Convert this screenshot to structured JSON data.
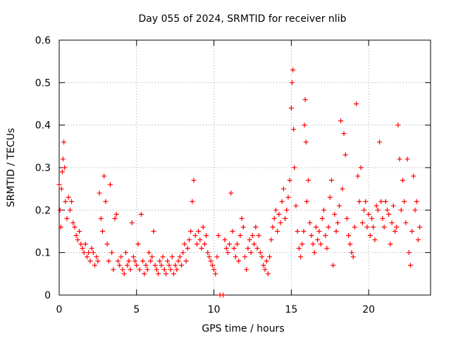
{
  "chart_data": {
    "type": "scatter",
    "title": "Day 055 of 2024, SRMTID for receiver nlib",
    "xlabel": "GPS time / hours",
    "ylabel": "SRMTID / TECUs",
    "xlim": [
      0,
      24
    ],
    "ylim": [
      0,
      0.6
    ],
    "xticks": [
      0,
      5,
      10,
      15,
      20
    ],
    "yticks": [
      0,
      0.1,
      0.2,
      0.3,
      0.4,
      0.5,
      0.6
    ],
    "xtick_labels": [
      "0",
      "5",
      "10",
      "15",
      "20"
    ],
    "ytick_labels": [
      "0",
      "0.1",
      "0.2",
      "0.3",
      "0.4",
      "0.5",
      "0.6"
    ],
    "grid": true,
    "marker": "plus",
    "series": [
      {
        "name": "SRMTID",
        "color": "#ff0000",
        "points": [
          [
            0.0,
            0.26
          ],
          [
            0.05,
            0.2
          ],
          [
            0.1,
            0.16
          ],
          [
            0.15,
            0.25
          ],
          [
            0.2,
            0.29
          ],
          [
            0.25,
            0.32
          ],
          [
            0.3,
            0.36
          ],
          [
            0.35,
            0.3
          ],
          [
            0.4,
            0.22
          ],
          [
            0.5,
            0.18
          ],
          [
            0.6,
            0.23
          ],
          [
            0.7,
            0.2
          ],
          [
            0.8,
            0.22
          ],
          [
            0.9,
            0.17
          ],
          [
            1.0,
            0.16
          ],
          [
            1.1,
            0.14
          ],
          [
            1.2,
            0.13
          ],
          [
            1.3,
            0.15
          ],
          [
            1.4,
            0.12
          ],
          [
            1.5,
            0.11
          ],
          [
            1.6,
            0.1
          ],
          [
            1.7,
            0.12
          ],
          [
            1.8,
            0.09
          ],
          [
            1.9,
            0.1
          ],
          [
            2.0,
            0.08
          ],
          [
            2.1,
            0.11
          ],
          [
            2.2,
            0.1
          ],
          [
            2.3,
            0.07
          ],
          [
            2.4,
            0.09
          ],
          [
            2.5,
            0.08
          ],
          [
            2.6,
            0.24
          ],
          [
            2.7,
            0.18
          ],
          [
            2.8,
            0.15
          ],
          [
            2.9,
            0.28
          ],
          [
            3.0,
            0.22
          ],
          [
            3.1,
            0.12
          ],
          [
            3.2,
            0.08
          ],
          [
            3.3,
            0.26
          ],
          [
            3.4,
            0.1
          ],
          [
            3.5,
            0.06
          ],
          [
            3.6,
            0.18
          ],
          [
            3.7,
            0.19
          ],
          [
            3.8,
            0.08
          ],
          [
            3.9,
            0.07
          ],
          [
            4.0,
            0.09
          ],
          [
            4.1,
            0.06
          ],
          [
            4.2,
            0.05
          ],
          [
            4.3,
            0.1
          ],
          [
            4.4,
            0.07
          ],
          [
            4.5,
            0.08
          ],
          [
            4.6,
            0.06
          ],
          [
            4.7,
            0.17
          ],
          [
            4.8,
            0.09
          ],
          [
            4.9,
            0.08
          ],
          [
            5.0,
            0.07
          ],
          [
            5.1,
            0.12
          ],
          [
            5.2,
            0.06
          ],
          [
            5.3,
            0.19
          ],
          [
            5.4,
            0.08
          ],
          [
            5.5,
            0.05
          ],
          [
            5.6,
            0.07
          ],
          [
            5.7,
            0.06
          ],
          [
            5.8,
            0.1
          ],
          [
            5.9,
            0.08
          ],
          [
            6.0,
            0.09
          ],
          [
            6.1,
            0.15
          ],
          [
            6.2,
            0.07
          ],
          [
            6.3,
            0.06
          ],
          [
            6.4,
            0.05
          ],
          [
            6.5,
            0.08
          ],
          [
            6.6,
            0.07
          ],
          [
            6.7,
            0.09
          ],
          [
            6.8,
            0.06
          ],
          [
            6.9,
            0.05
          ],
          [
            7.0,
            0.08
          ],
          [
            7.1,
            0.07
          ],
          [
            7.2,
            0.06
          ],
          [
            7.3,
            0.09
          ],
          [
            7.4,
            0.05
          ],
          [
            7.5,
            0.07
          ],
          [
            7.6,
            0.06
          ],
          [
            7.7,
            0.08
          ],
          [
            7.8,
            0.09
          ],
          [
            7.9,
            0.07
          ],
          [
            8.0,
            0.1
          ],
          [
            8.1,
            0.12
          ],
          [
            8.2,
            0.08
          ],
          [
            8.3,
            0.11
          ],
          [
            8.4,
            0.13
          ],
          [
            8.5,
            0.15
          ],
          [
            8.6,
            0.22
          ],
          [
            8.7,
            0.27
          ],
          [
            8.8,
            0.14
          ],
          [
            8.9,
            0.12
          ],
          [
            9.0,
            0.15
          ],
          [
            9.1,
            0.13
          ],
          [
            9.2,
            0.11
          ],
          [
            9.3,
            0.16
          ],
          [
            9.4,
            0.12
          ],
          [
            9.5,
            0.14
          ],
          [
            9.6,
            0.1
          ],
          [
            9.7,
            0.09
          ],
          [
            9.8,
            0.08
          ],
          [
            9.9,
            0.07
          ],
          [
            10.0,
            0.06
          ],
          [
            10.1,
            0.05
          ],
          [
            10.2,
            0.09
          ],
          [
            10.3,
            0.14
          ],
          [
            10.4,
            0.0
          ],
          [
            10.6,
            0.0
          ],
          [
            10.7,
            0.13
          ],
          [
            10.8,
            0.11
          ],
          [
            10.9,
            0.1
          ],
          [
            11.0,
            0.12
          ],
          [
            11.1,
            0.24
          ],
          [
            11.2,
            0.15
          ],
          [
            11.3,
            0.11
          ],
          [
            11.4,
            0.09
          ],
          [
            11.5,
            0.12
          ],
          [
            11.6,
            0.08
          ],
          [
            11.7,
            0.14
          ],
          [
            11.8,
            0.18
          ],
          [
            11.9,
            0.16
          ],
          [
            12.0,
            0.09
          ],
          [
            12.1,
            0.06
          ],
          [
            12.2,
            0.11
          ],
          [
            12.3,
            0.13
          ],
          [
            12.4,
            0.1
          ],
          [
            12.5,
            0.14
          ],
          [
            12.6,
            0.12
          ],
          [
            12.7,
            0.16
          ],
          [
            12.8,
            0.11
          ],
          [
            12.9,
            0.14
          ],
          [
            13.0,
            0.1
          ],
          [
            13.1,
            0.09
          ],
          [
            13.2,
            0.07
          ],
          [
            13.3,
            0.06
          ],
          [
            13.4,
            0.08
          ],
          [
            13.5,
            0.05
          ],
          [
            13.6,
            0.09
          ],
          [
            13.7,
            0.13
          ],
          [
            13.8,
            0.16
          ],
          [
            13.9,
            0.18
          ],
          [
            14.0,
            0.2
          ],
          [
            14.1,
            0.15
          ],
          [
            14.2,
            0.19
          ],
          [
            14.3,
            0.17
          ],
          [
            14.4,
            0.22
          ],
          [
            14.5,
            0.25
          ],
          [
            14.6,
            0.18
          ],
          [
            14.7,
            0.2
          ],
          [
            14.8,
            0.23
          ],
          [
            14.9,
            0.27
          ],
          [
            15.0,
            0.44
          ],
          [
            15.05,
            0.5
          ],
          [
            15.1,
            0.53
          ],
          [
            15.15,
            0.39
          ],
          [
            15.2,
            0.3
          ],
          [
            15.3,
            0.21
          ],
          [
            15.4,
            0.15
          ],
          [
            15.5,
            0.11
          ],
          [
            15.6,
            0.09
          ],
          [
            15.7,
            0.12
          ],
          [
            15.8,
            0.15
          ],
          [
            15.85,
            0.4
          ],
          [
            15.9,
            0.46
          ],
          [
            15.95,
            0.36
          ],
          [
            16.0,
            0.22
          ],
          [
            16.1,
            0.27
          ],
          [
            16.2,
            0.17
          ],
          [
            16.3,
            0.14
          ],
          [
            16.4,
            0.12
          ],
          [
            16.5,
            0.1
          ],
          [
            16.6,
            0.16
          ],
          [
            16.7,
            0.13
          ],
          [
            16.8,
            0.15
          ],
          [
            16.9,
            0.12
          ],
          [
            17.0,
            0.18
          ],
          [
            17.1,
            0.2
          ],
          [
            17.2,
            0.14
          ],
          [
            17.3,
            0.11
          ],
          [
            17.4,
            0.16
          ],
          [
            17.5,
            0.23
          ],
          [
            17.6,
            0.27
          ],
          [
            17.7,
            0.07
          ],
          [
            17.8,
            0.19
          ],
          [
            17.9,
            0.15
          ],
          [
            18.0,
            0.17
          ],
          [
            18.1,
            0.21
          ],
          [
            18.2,
            0.41
          ],
          [
            18.3,
            0.25
          ],
          [
            18.4,
            0.38
          ],
          [
            18.5,
            0.33
          ],
          [
            18.6,
            0.18
          ],
          [
            18.7,
            0.14
          ],
          [
            18.8,
            0.12
          ],
          [
            18.9,
            0.1
          ],
          [
            19.0,
            0.09
          ],
          [
            19.1,
            0.16
          ],
          [
            19.2,
            0.45
          ],
          [
            19.3,
            0.28
          ],
          [
            19.4,
            0.22
          ],
          [
            19.5,
            0.3
          ],
          [
            19.6,
            0.17
          ],
          [
            19.7,
            0.2
          ],
          [
            19.8,
            0.22
          ],
          [
            19.9,
            0.16
          ],
          [
            20.0,
            0.19
          ],
          [
            20.1,
            0.14
          ],
          [
            20.2,
            0.18
          ],
          [
            20.3,
            0.16
          ],
          [
            20.4,
            0.13
          ],
          [
            20.5,
            0.21
          ],
          [
            20.6,
            0.2
          ],
          [
            20.7,
            0.36
          ],
          [
            20.8,
            0.22
          ],
          [
            20.9,
            0.18
          ],
          [
            21.0,
            0.16
          ],
          [
            21.1,
            0.22
          ],
          [
            21.2,
            0.2
          ],
          [
            21.3,
            0.19
          ],
          [
            21.4,
            0.12
          ],
          [
            21.5,
            0.17
          ],
          [
            21.6,
            0.21
          ],
          [
            21.7,
            0.15
          ],
          [
            21.8,
            0.16
          ],
          [
            21.9,
            0.4
          ],
          [
            22.0,
            0.32
          ],
          [
            22.1,
            0.2
          ],
          [
            22.2,
            0.27
          ],
          [
            22.3,
            0.22
          ],
          [
            22.4,
            0.17
          ],
          [
            22.5,
            0.32
          ],
          [
            22.6,
            0.1
          ],
          [
            22.7,
            0.07
          ],
          [
            22.8,
            0.15
          ],
          [
            22.9,
            0.28
          ],
          [
            23.0,
            0.2
          ],
          [
            23.1,
            0.22
          ],
          [
            23.2,
            0.13
          ],
          [
            23.3,
            0.16
          ]
        ]
      }
    ]
  }
}
